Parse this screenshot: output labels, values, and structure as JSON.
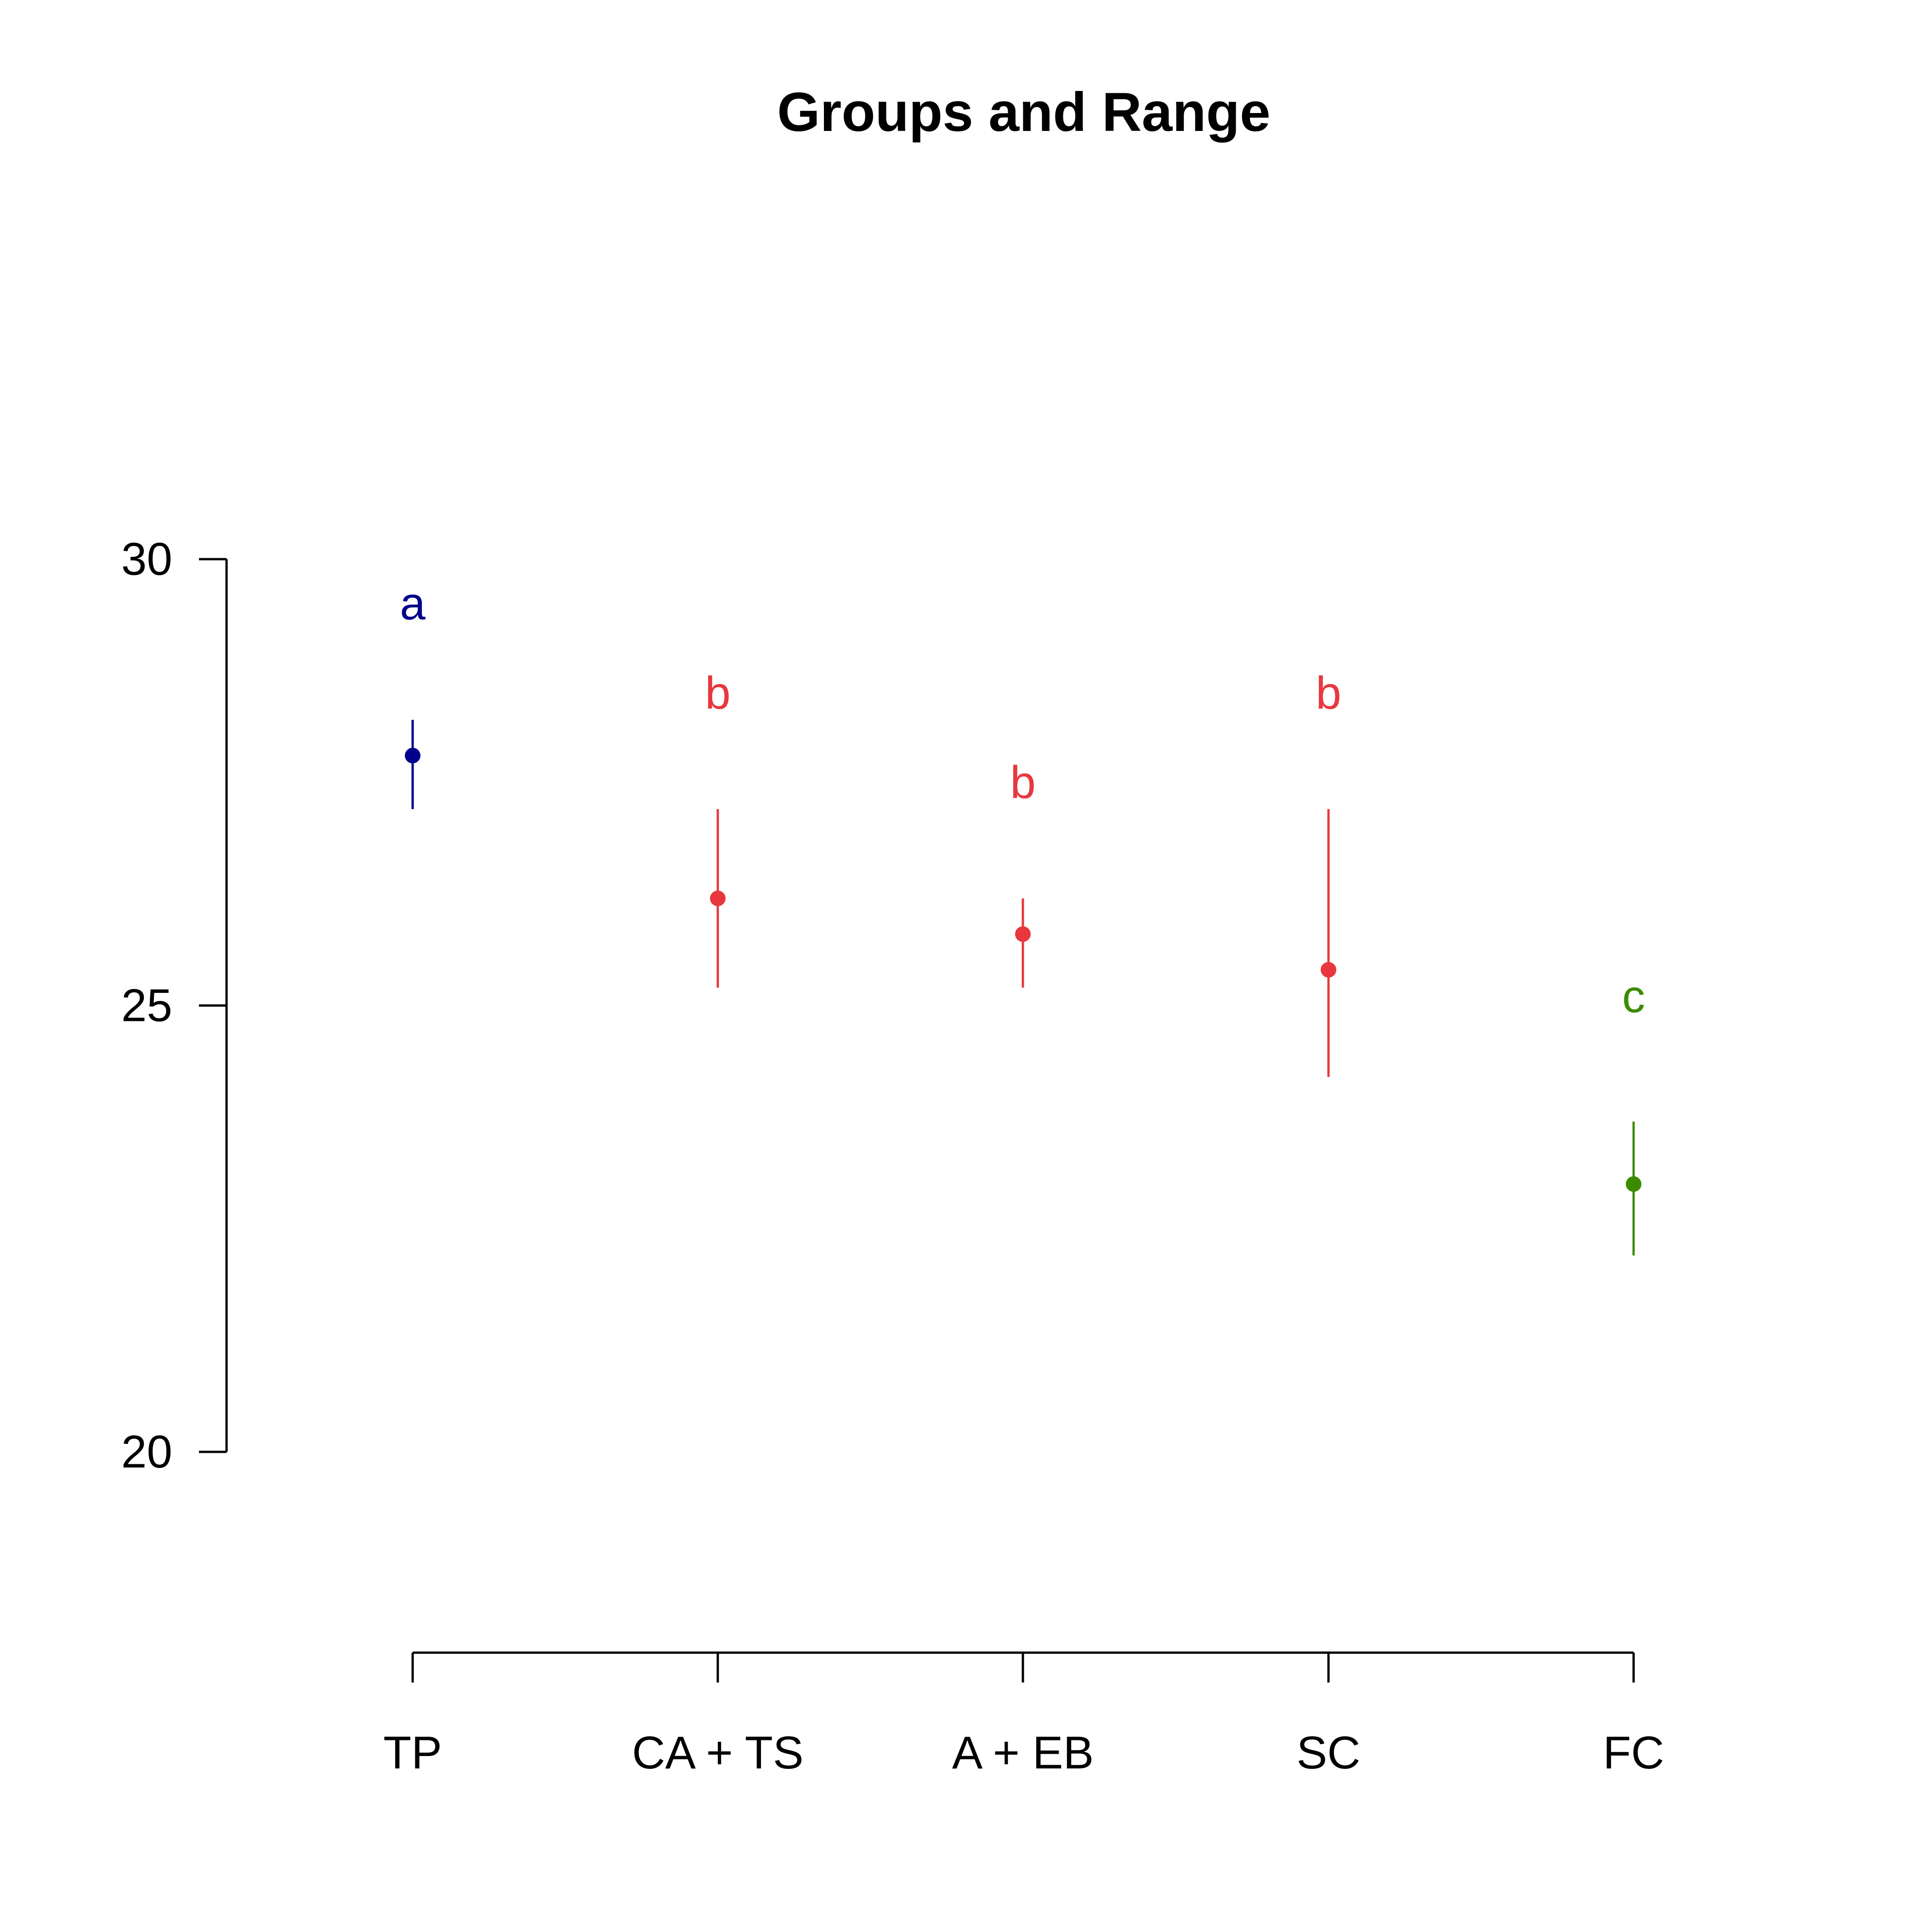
{
  "chart_data": {
    "type": "scatter",
    "title": "Groups and Range",
    "xlabel": "",
    "ylabel": "",
    "categories": [
      "TP",
      "CA + TS",
      "A + EB",
      "SC",
      "FC"
    ],
    "points": [
      {
        "category": "TP",
        "value": 27.8,
        "low": 27.2,
        "high": 28.2,
        "group": "a",
        "color": "#00008B"
      },
      {
        "category": "CA + TS",
        "value": 26.2,
        "low": 25.2,
        "high": 27.2,
        "group": "b",
        "color": "#E8383D"
      },
      {
        "category": "A + EB",
        "value": 25.8,
        "low": 25.2,
        "high": 26.2,
        "group": "b",
        "color": "#E8383D"
      },
      {
        "category": "SC",
        "value": 25.4,
        "low": 24.2,
        "high": 27.2,
        "group": "b",
        "color": "#E8383D"
      },
      {
        "category": "FC",
        "value": 23.0,
        "low": 22.2,
        "high": 23.7,
        "group": "c",
        "color": "#3C8C00"
      }
    ],
    "group_label_values": [
      29.5,
      28.5,
      27.5,
      28.5,
      25.1
    ],
    "yticks": [
      20,
      25,
      30
    ],
    "ylim": [
      17.75,
      32.25
    ],
    "grid": false,
    "legend": "none"
  }
}
